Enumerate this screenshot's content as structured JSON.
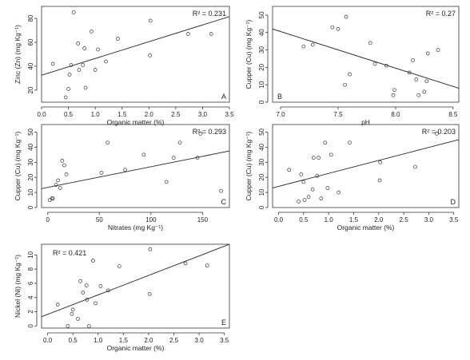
{
  "chart_data": [
    {
      "panel": "A",
      "type": "scatter",
      "xlabel": "Organic matter (%)",
      "ylabel": "Zinc (Zn) (mg Kg⁻¹)",
      "r2_label": "R² = 0.231",
      "xlim": [
        0,
        3.5
      ],
      "ylim": [
        10,
        90
      ],
      "xticks": [
        "0.0",
        "0.5",
        "1.0",
        "1.5",
        "2.0",
        "2.5",
        "3.0",
        "3.5"
      ],
      "yticks": [
        "20",
        "40",
        "60",
        "80"
      ],
      "points": [
        [
          0.21,
          42
        ],
        [
          0.45,
          14
        ],
        [
          0.5,
          21
        ],
        [
          0.52,
          33
        ],
        [
          0.55,
          41
        ],
        [
          0.6,
          85
        ],
        [
          0.68,
          59
        ],
        [
          0.7,
          37
        ],
        [
          0.77,
          41
        ],
        [
          0.8,
          55
        ],
        [
          0.82,
          22
        ],
        [
          0.93,
          69
        ],
        [
          1.0,
          37
        ],
        [
          1.05,
          54
        ],
        [
          1.2,
          44
        ],
        [
          1.42,
          63
        ],
        [
          2.02,
          49
        ],
        [
          2.03,
          78
        ],
        [
          2.73,
          67
        ],
        [
          3.16,
          67
        ]
      ],
      "fit": {
        "x": [
          0,
          3.5
        ],
        "y": [
          32.5,
          81.5
        ]
      },
      "legend": "none",
      "grid": false
    },
    {
      "panel": "B",
      "type": "scatter",
      "xlabel": "pH",
      "ylabel": "Cupper (Cu) (mg Kg⁻¹)",
      "r2_label": "R² = 0.27",
      "xlim": [
        6.93,
        8.55
      ],
      "ylim": [
        0,
        55
      ],
      "xticks": [
        "7.0",
        "7.5",
        "8.0",
        "8.5"
      ],
      "yticks": [
        "0",
        "10",
        "20",
        "30",
        "40",
        "50"
      ],
      "points": [
        [
          7.2,
          32
        ],
        [
          7.28,
          33
        ],
        [
          7.45,
          43
        ],
        [
          7.5,
          42
        ],
        [
          7.56,
          10
        ],
        [
          7.57,
          49
        ],
        [
          7.6,
          16
        ],
        [
          7.78,
          34
        ],
        [
          7.82,
          22
        ],
        [
          7.92,
          21
        ],
        [
          7.98,
          4
        ],
        [
          7.99,
          7
        ],
        [
          8.12,
          17
        ],
        [
          8.15,
          24
        ],
        [
          8.18,
          13
        ],
        [
          8.2,
          4
        ],
        [
          8.25,
          6
        ],
        [
          8.27,
          12
        ],
        [
          8.28,
          28
        ],
        [
          8.37,
          30
        ]
      ],
      "fit": {
        "x": [
          6.93,
          8.55
        ],
        "y": [
          42,
          8
        ]
      },
      "legend": "none",
      "grid": false
    },
    {
      "panel": "C",
      "type": "scatter",
      "xlabel": "Nitrates (mg Kg⁻¹)",
      "ylabel": "Cupper (Cu) (mg Kg⁻¹)",
      "r2_label": "R² = 0.293",
      "xlim": [
        -6,
        176
      ],
      "ylim": [
        0,
        55
      ],
      "xticks": [
        "0",
        "50",
        "100",
        "150"
      ],
      "yticks": [
        "0",
        "10",
        "20",
        "30",
        "40",
        "50"
      ],
      "points": [
        [
          2,
          5
        ],
        [
          4,
          6
        ],
        [
          5,
          6
        ],
        [
          8,
          15
        ],
        [
          10,
          18
        ],
        [
          12,
          13
        ],
        [
          14,
          31
        ],
        [
          16,
          28
        ],
        [
          18,
          22
        ],
        [
          52,
          23
        ],
        [
          58,
          43
        ],
        [
          75,
          25
        ],
        [
          93,
          35
        ],
        [
          115,
          17
        ],
        [
          122,
          33
        ],
        [
          128,
          43
        ],
        [
          145,
          33
        ],
        [
          148,
          49
        ],
        [
          168,
          11
        ]
      ],
      "fit": {
        "x": [
          -6,
          176
        ],
        "y": [
          12.5,
          37.5
        ]
      },
      "legend": "none",
      "grid": false
    },
    {
      "panel": "D",
      "type": "scatter",
      "xlabel": "Organic matter (%)",
      "ylabel": "Cupper (Cu) (mg Kg⁻¹)",
      "r2_label": "R² = 0.203",
      "xlim": [
        -0.12,
        3.6
      ],
      "ylim": [
        0,
        55
      ],
      "xticks": [
        "0.0",
        "0.5",
        "1.0",
        "1.5",
        "2.0",
        "2.5",
        "3.0",
        "3.5"
      ],
      "yticks": [
        "0",
        "10",
        "20",
        "30",
        "40",
        "50"
      ],
      "points": [
        [
          0.21,
          25
        ],
        [
          0.4,
          4
        ],
        [
          0.45,
          22
        ],
        [
          0.5,
          17
        ],
        [
          0.52,
          5
        ],
        [
          0.6,
          7
        ],
        [
          0.68,
          12
        ],
        [
          0.7,
          33
        ],
        [
          0.77,
          21
        ],
        [
          0.8,
          33
        ],
        [
          0.85,
          6
        ],
        [
          0.93,
          43
        ],
        [
          0.98,
          13
        ],
        [
          1.05,
          35
        ],
        [
          1.2,
          10
        ],
        [
          1.42,
          43
        ],
        [
          2.02,
          18
        ],
        [
          2.03,
          30
        ],
        [
          2.73,
          27
        ],
        [
          3.16,
          49
        ]
      ],
      "fit": {
        "x": [
          -0.12,
          3.6
        ],
        "y": [
          13,
          45
        ]
      },
      "legend": "none",
      "grid": false
    },
    {
      "panel": "E",
      "type": "scatter",
      "xlabel": "Organic matter (%)",
      "ylabel": "Nickel (Ni) (mg Kg⁻¹)",
      "r2_label": "R² = 0.421",
      "xlim": [
        -0.12,
        3.6
      ],
      "ylim": [
        -0.3,
        11.5
      ],
      "xticks": [
        "0.0",
        "0.5",
        "1.0",
        "1.5",
        "2.0",
        "2.5",
        "3.0",
        "3.5"
      ],
      "yticks": [
        "0",
        "2",
        "4",
        "6",
        "8",
        "10"
      ],
      "points": [
        [
          0.2,
          3.0
        ],
        [
          0.4,
          0.0
        ],
        [
          0.48,
          1.7
        ],
        [
          0.5,
          2.3
        ],
        [
          0.6,
          1.0
        ],
        [
          0.65,
          6.3
        ],
        [
          0.7,
          4.7
        ],
        [
          0.77,
          5.7
        ],
        [
          0.78,
          3.7
        ],
        [
          0.82,
          0.0
        ],
        [
          0.9,
          9.2
        ],
        [
          0.95,
          3.2
        ],
        [
          1.05,
          5.6
        ],
        [
          1.2,
          5.0
        ],
        [
          1.42,
          8.4
        ],
        [
          2.02,
          4.5
        ],
        [
          2.03,
          10.8
        ],
        [
          2.73,
          8.8
        ],
        [
          3.16,
          8.5
        ]
      ],
      "fit": {
        "x": [
          -0.12,
          3.6
        ],
        "y": [
          1.3,
          11.5
        ]
      },
      "legend": "none",
      "grid": false
    }
  ]
}
